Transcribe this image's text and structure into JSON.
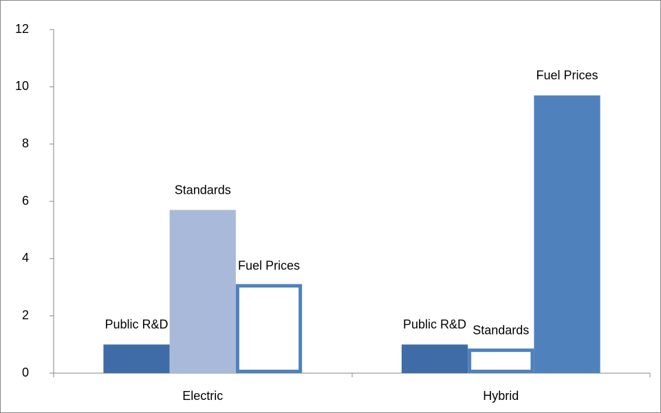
{
  "chart_data": {
    "type": "bar",
    "categories": [
      "Electric",
      "Hybrid"
    ],
    "series": [
      {
        "name": "Public R&D",
        "colors": [
          "#3f6ca6",
          "#3f6ca6"
        ],
        "filled": [
          true,
          true
        ],
        "values": [
          1,
          1
        ]
      },
      {
        "name": "Standards",
        "colors": [
          "#a9b9d9",
          "#4f81bd"
        ],
        "filled": [
          true,
          false
        ],
        "values": [
          5.7,
          0.8
        ]
      },
      {
        "name": "Fuel Prices",
        "colors": [
          "#4f81bd",
          "#4f81bd"
        ],
        "filled": [
          false,
          true
        ],
        "values": [
          3.05,
          9.7
        ]
      }
    ],
    "ylim": [
      0,
      12
    ],
    "yticks": [
      0,
      2,
      4,
      6,
      8,
      10,
      12
    ],
    "grid": false
  }
}
